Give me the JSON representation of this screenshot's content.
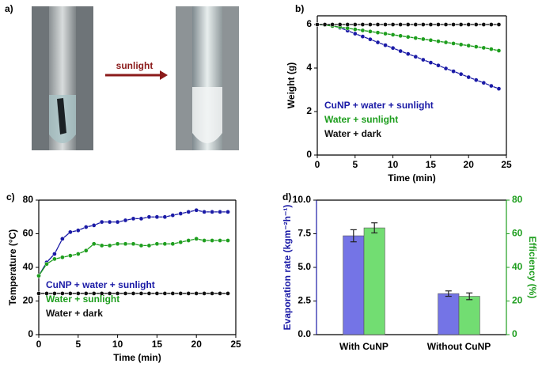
{
  "photo_panel": {
    "label": "a)",
    "arrow_text": "sunlight"
  },
  "chart_data": [
    {
      "type": "line",
      "panel_label": "b)",
      "xlabel": "Time (min)",
      "ylabel": "Weight (g)",
      "x": [
        0,
        1,
        2,
        3,
        4,
        5,
        6,
        7,
        8,
        9,
        10,
        11,
        12,
        13,
        14,
        15,
        16,
        17,
        18,
        19,
        20,
        21,
        22,
        23,
        24
      ],
      "xlim": [
        0,
        25
      ],
      "xticks": [
        0,
        5,
        10,
        15,
        20,
        25
      ],
      "ylim": [
        0,
        6.4
      ],
      "yticks": [
        0,
        2,
        4,
        6
      ],
      "legend": "lower left",
      "series": [
        {
          "name": "CuNP + water + sunlight",
          "color": "#1a1aa6",
          "values": [
            6,
            5.98,
            5.95,
            5.85,
            5.72,
            5.58,
            5.45,
            5.32,
            5.18,
            5.05,
            4.92,
            4.78,
            4.65,
            4.52,
            4.38,
            4.25,
            4.12,
            3.98,
            3.85,
            3.72,
            3.58,
            3.45,
            3.32,
            3.18,
            3.05
          ]
        },
        {
          "name": "Water + sunlight",
          "color": "#1e9e1e",
          "values": [
            6,
            5.98,
            5.93,
            5.88,
            5.83,
            5.78,
            5.73,
            5.68,
            5.63,
            5.58,
            5.53,
            5.48,
            5.43,
            5.38,
            5.33,
            5.28,
            5.23,
            5.18,
            5.13,
            5.08,
            5.03,
            4.98,
            4.93,
            4.87,
            4.8
          ]
        },
        {
          "name": "Water + dark",
          "color": "#111111",
          "values": [
            6,
            6,
            6,
            6,
            6,
            6,
            6,
            6,
            6,
            6,
            6,
            6,
            6,
            6,
            6,
            6,
            6,
            6,
            6,
            6,
            6,
            6,
            6,
            6,
            6
          ]
        }
      ]
    },
    {
      "type": "line",
      "panel_label": "c)",
      "xlabel": "Time (min)",
      "ylabel": "Temperature (°C)",
      "x": [
        0,
        1,
        2,
        3,
        4,
        5,
        6,
        7,
        8,
        9,
        10,
        11,
        12,
        13,
        14,
        15,
        16,
        17,
        18,
        19,
        20,
        21,
        22,
        23,
        24
      ],
      "xlim": [
        0,
        25
      ],
      "xticks": [
        0,
        5,
        10,
        15,
        20,
        25
      ],
      "ylim": [
        0,
        80
      ],
      "yticks": [
        0,
        20,
        40,
        60,
        80
      ],
      "legend": "lower left",
      "series": [
        {
          "name": "CuNP + water + sunlight",
          "color": "#1a1aa6",
          "values": [
            35,
            43,
            48,
            57,
            61,
            62,
            64,
            65,
            67,
            67,
            67,
            68,
            69,
            69,
            70,
            70,
            70,
            71,
            72,
            73,
            74,
            73,
            73,
            73,
            73
          ]
        },
        {
          "name": "Water + sunlight",
          "color": "#1e9e1e",
          "values": [
            35,
            42,
            45,
            46,
            47,
            48,
            50,
            54,
            53,
            53,
            54,
            54,
            54,
            53,
            53,
            54,
            54,
            54,
            55,
            56,
            57,
            56,
            56,
            56,
            56
          ]
        },
        {
          "name": "Water + dark",
          "color": "#111111",
          "values": [
            24.5,
            24.5,
            24.5,
            24.5,
            24.5,
            24.5,
            24.5,
            24.5,
            24.5,
            24.5,
            24.5,
            24.5,
            24.5,
            24.5,
            24.5,
            24.5,
            24.5,
            24.5,
            24.5,
            24.5,
            24.5,
            24.5,
            24.5,
            24.5,
            24.5
          ]
        }
      ]
    },
    {
      "type": "bar",
      "panel_label": "d)",
      "ylabel": "Evaporation rate (kgm⁻²h⁻¹)",
      "y2label": "Efficiency (%)",
      "categories": [
        "With CuNP",
        "Without CuNP"
      ],
      "ylim": [
        0,
        10
      ],
      "yticks": [
        {
          "value": 0,
          "label": "0.0"
        },
        {
          "value": 2.5,
          "label": "2.5"
        },
        {
          "value": 5,
          "label": "5.0"
        },
        {
          "value": 7.5,
          "label": "7.5"
        },
        {
          "value": 10,
          "label": "10.0"
        }
      ],
      "y2lim": [
        0,
        80
      ],
      "y2ticks": [
        0,
        20,
        40,
        60,
        80
      ],
      "series": [
        {
          "color": "#7474e6",
          "values": [
            7.35,
            3.05
          ],
          "errors": [
            0.45,
            0.2
          ]
        },
        {
          "color": "#72dd72",
          "axis": "y2",
          "values": [
            63.5,
            22.8
          ],
          "errors": [
            3,
            2
          ]
        }
      ]
    }
  ]
}
